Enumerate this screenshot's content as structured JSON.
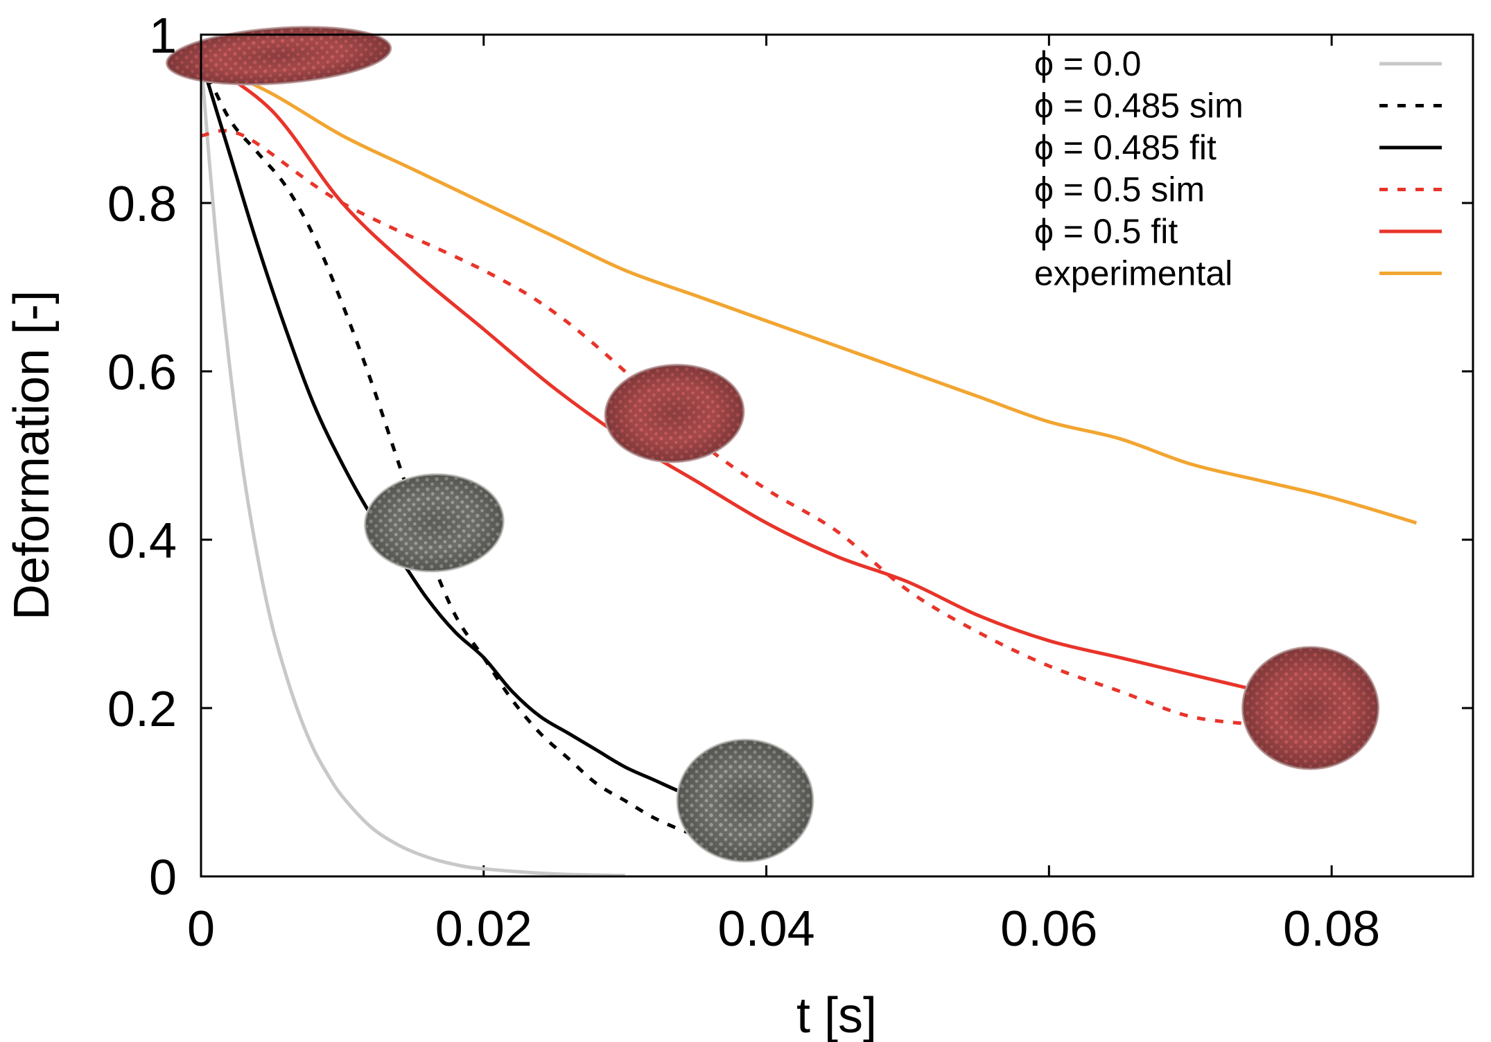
{
  "chart_data": {
    "type": "line",
    "title": "",
    "xlabel": "t [s]",
    "ylabel": "Deformation [-]",
    "xlim": [
      0,
      0.09
    ],
    "ylim": [
      0,
      1
    ],
    "xticks": [
      0,
      0.02,
      0.04,
      0.06,
      0.08
    ],
    "xtick_labels": [
      "0",
      "0.02",
      "0.04",
      "0.06",
      "0.08"
    ],
    "yticks": [
      0,
      0.2,
      0.4,
      0.6,
      0.8,
      1
    ],
    "ytick_labels": [
      "0",
      "0.2",
      "0.4",
      "0.6",
      "0.8",
      "1"
    ],
    "legend_position": "top-right",
    "series": [
      {
        "name": "ϕ = 0.0",
        "style": "solid",
        "color": "#c8c8c8",
        "x": [
          0,
          0.001,
          0.002,
          0.003,
          0.004,
          0.005,
          0.006,
          0.007,
          0.008,
          0.009,
          0.01,
          0.012,
          0.014,
          0.016,
          0.018,
          0.02,
          0.025,
          0.03
        ],
        "y": [
          0.97,
          0.77,
          0.61,
          0.48,
          0.38,
          0.3,
          0.24,
          0.19,
          0.15,
          0.12,
          0.095,
          0.059,
          0.037,
          0.023,
          0.014,
          0.009,
          0.003,
          0.001
        ]
      },
      {
        "name": "ϕ = 0.485 sim",
        "style": "dotted",
        "color": "#000000",
        "x": [
          0,
          0.002,
          0.004,
          0.006,
          0.008,
          0.01,
          0.012,
          0.014,
          0.016,
          0.018,
          0.02,
          0.022,
          0.024,
          0.026,
          0.028,
          0.03,
          0.032,
          0.034,
          0.035
        ],
        "y": [
          0.97,
          0.9,
          0.86,
          0.82,
          0.76,
          0.68,
          0.59,
          0.49,
          0.39,
          0.31,
          0.26,
          0.21,
          0.17,
          0.14,
          0.11,
          0.09,
          0.07,
          0.055,
          0.05
        ]
      },
      {
        "name": "ϕ = 0.485 fit",
        "style": "solid",
        "color": "#000000",
        "x": [
          0,
          0.002,
          0.004,
          0.006,
          0.008,
          0.01,
          0.012,
          0.014,
          0.016,
          0.018,
          0.02,
          0.022,
          0.024,
          0.026,
          0.028,
          0.03,
          0.032,
          0.034,
          0.035
        ],
        "y": [
          0.97,
          0.86,
          0.75,
          0.65,
          0.56,
          0.49,
          0.43,
          0.38,
          0.33,
          0.29,
          0.26,
          0.22,
          0.19,
          0.17,
          0.15,
          0.13,
          0.115,
          0.1,
          0.095
        ]
      },
      {
        "name": "ϕ = 0.5 sim",
        "style": "dotted",
        "color": "#e8342a",
        "x": [
          0,
          0.003,
          0.01,
          0.02,
          0.025,
          0.03,
          0.035,
          0.04,
          0.045,
          0.05,
          0.055,
          0.06,
          0.065,
          0.07,
          0.075
        ],
        "y": [
          0.88,
          0.88,
          0.8,
          0.72,
          0.67,
          0.6,
          0.52,
          0.46,
          0.41,
          0.34,
          0.29,
          0.25,
          0.22,
          0.19,
          0.18
        ]
      },
      {
        "name": "ϕ = 0.5 fit",
        "style": "solid",
        "color": "#e8342a",
        "x": [
          0,
          0.005,
          0.01,
          0.015,
          0.02,
          0.025,
          0.03,
          0.035,
          0.04,
          0.045,
          0.05,
          0.055,
          0.06,
          0.065,
          0.07,
          0.075
        ],
        "y": [
          0.97,
          0.91,
          0.8,
          0.72,
          0.65,
          0.58,
          0.52,
          0.47,
          0.42,
          0.38,
          0.35,
          0.31,
          0.28,
          0.26,
          0.24,
          0.22
        ]
      },
      {
        "name": "experimental",
        "style": "solid",
        "color": "#f2a531",
        "x": [
          0,
          0.005,
          0.01,
          0.015,
          0.02,
          0.025,
          0.03,
          0.035,
          0.04,
          0.045,
          0.05,
          0.055,
          0.06,
          0.065,
          0.07,
          0.075,
          0.08,
          0.086
        ],
        "y": [
          0.97,
          0.93,
          0.88,
          0.84,
          0.8,
          0.76,
          0.72,
          0.69,
          0.66,
          0.63,
          0.6,
          0.57,
          0.54,
          0.52,
          0.49,
          0.47,
          0.45,
          0.42
        ]
      }
    ],
    "cell_images": [
      {
        "t": 0.0055,
        "deformation": 0.975,
        "color": "red",
        "shape": "stretched"
      },
      {
        "t": 0.0335,
        "deformation": 0.55,
        "color": "red",
        "shape": "oval"
      },
      {
        "t": 0.0165,
        "deformation": 0.42,
        "color": "gray",
        "shape": "oval"
      },
      {
        "t": 0.0785,
        "deformation": 0.2,
        "color": "red",
        "shape": "round"
      },
      {
        "t": 0.0385,
        "deformation": 0.09,
        "color": "gray",
        "shape": "round"
      }
    ]
  }
}
